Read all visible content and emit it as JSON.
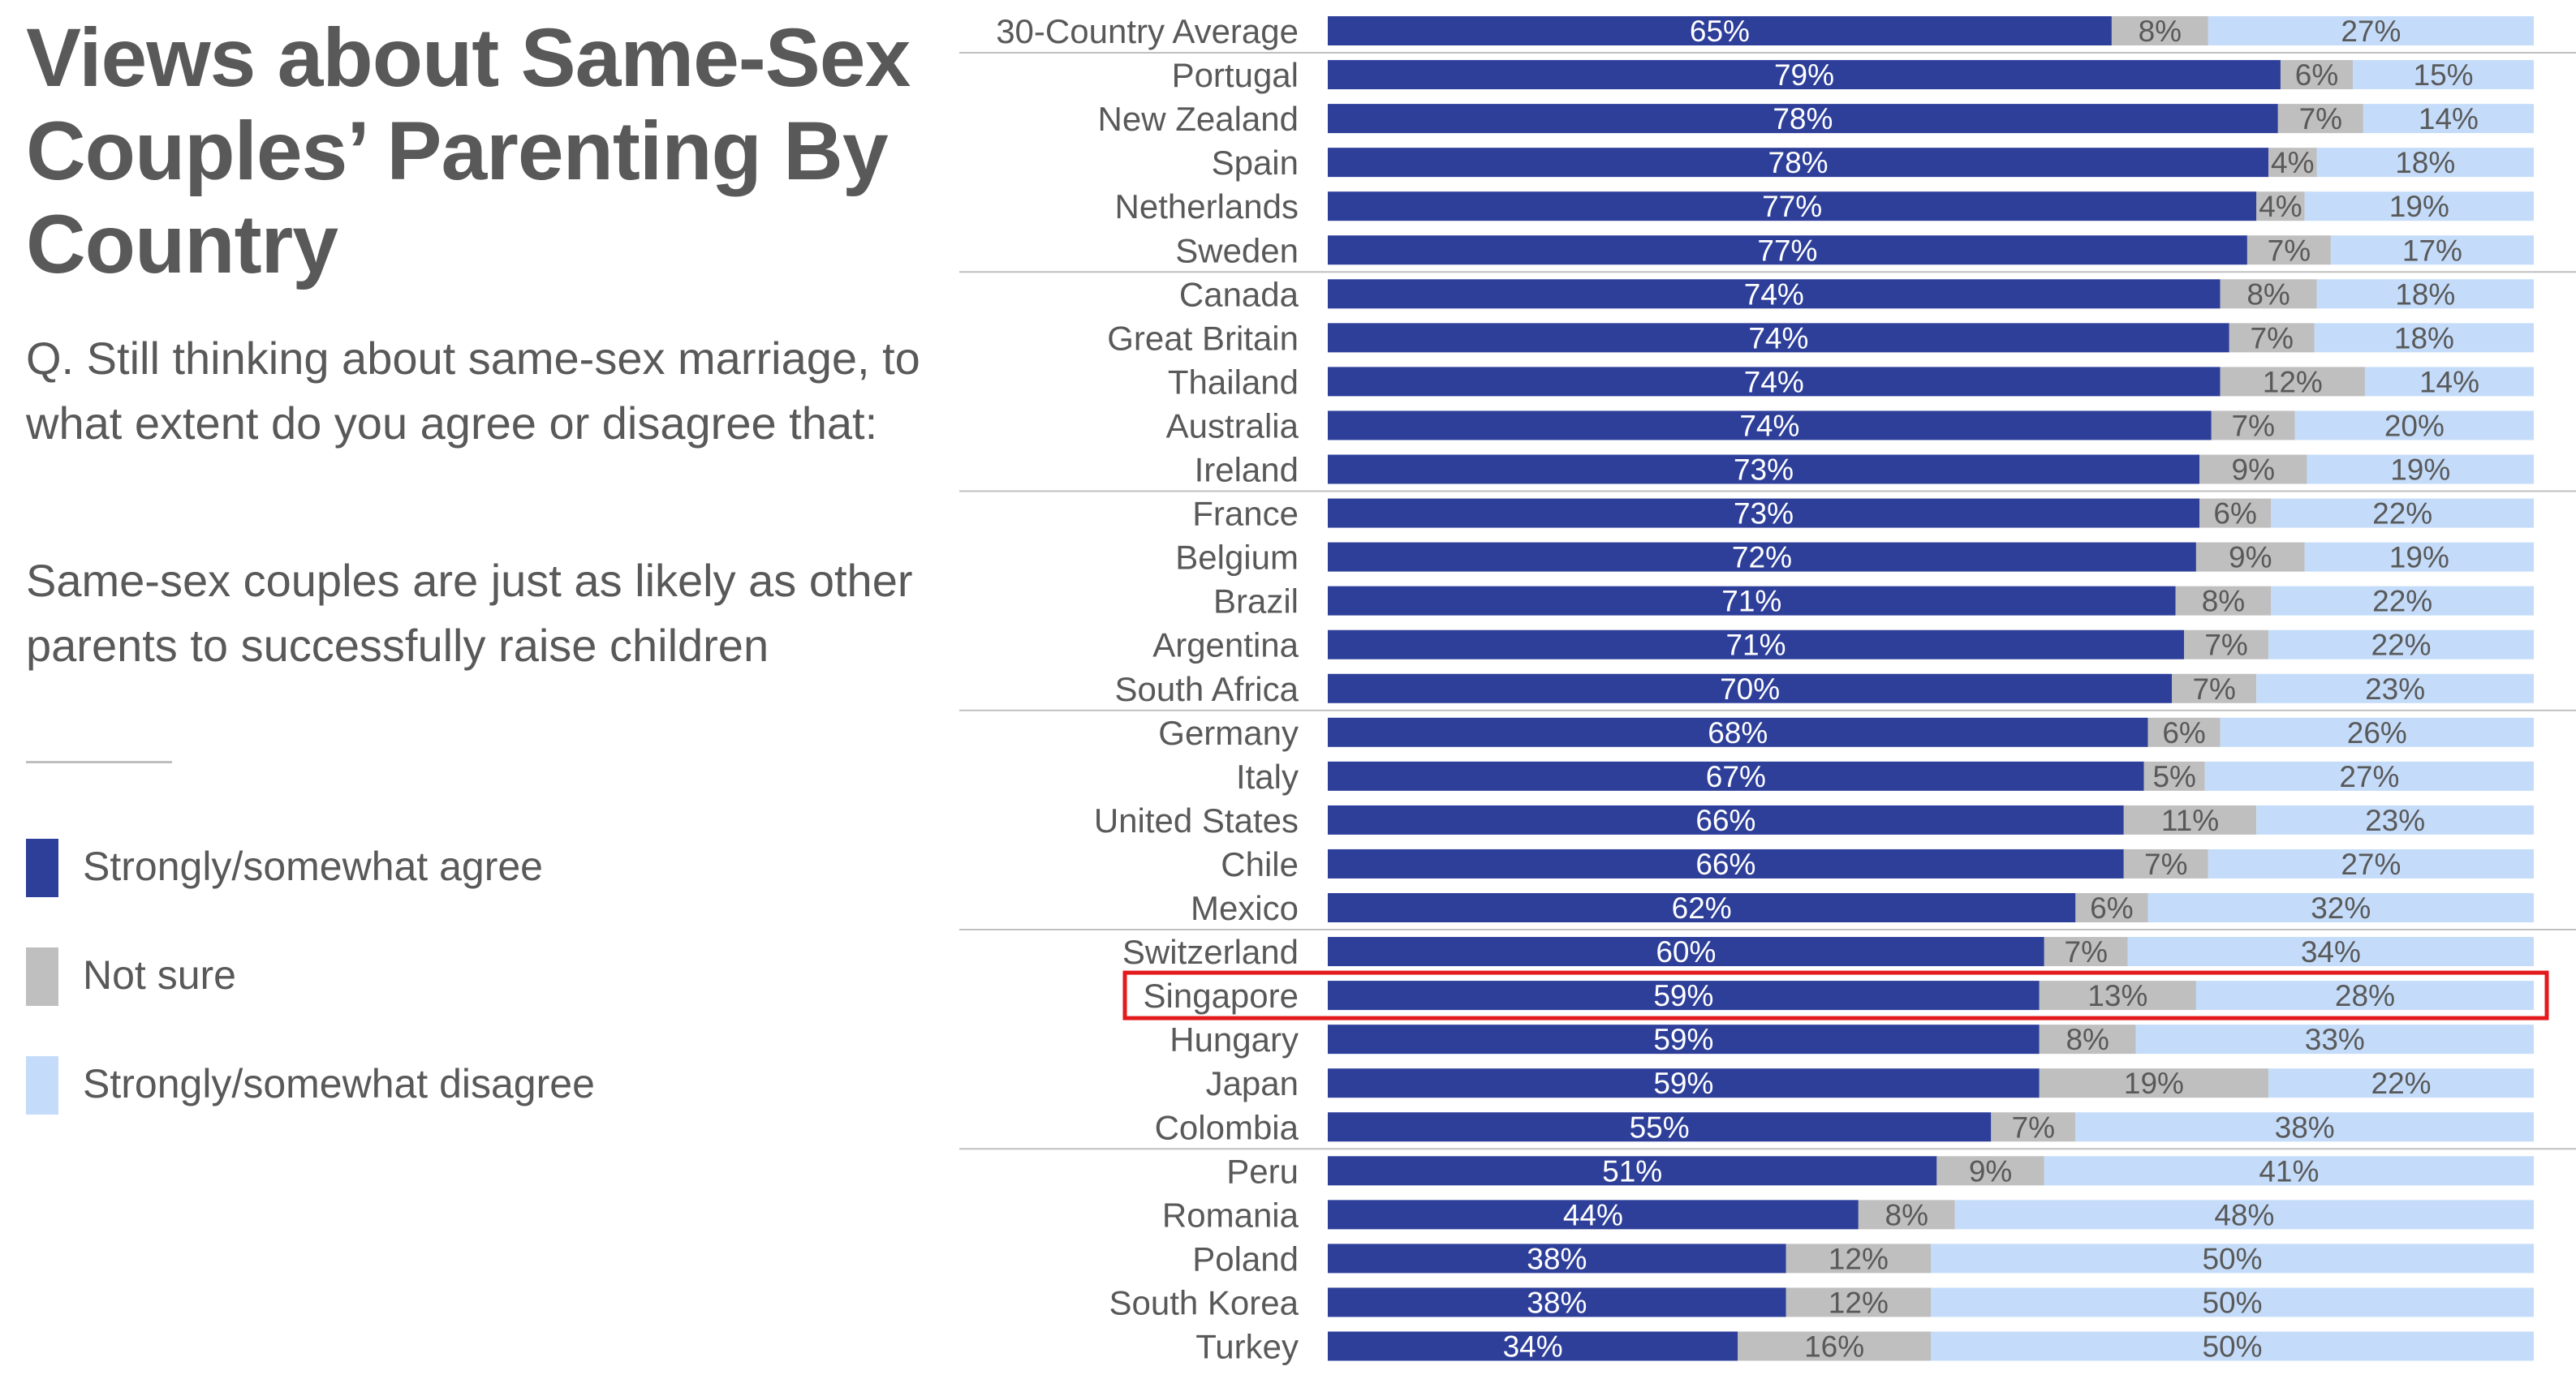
{
  "title": "Views about Same-Sex Couples’ Parenting By Country",
  "question": "Q. Still thinking about same-sex marriage, to what extent do you agree or disagree that:",
  "statement": "Same-sex couples are just as likely as other parents to successfully raise children",
  "colors": {
    "agree": "#2e3f9a",
    "not_sure": "#bfbfbf",
    "disagree": "#c4dcfa",
    "highlight": "#e31a1c",
    "text": "#595959",
    "separator": "#bfbfbf"
  },
  "legend": [
    {
      "label": "Strongly/somewhat agree",
      "color": "#2e3f9a"
    },
    {
      "label": "Not sure",
      "color": "#bfbfbf"
    },
    {
      "label": "Strongly/somewhat disagree",
      "color": "#c4dcfa"
    }
  ],
  "chart_data": {
    "type": "bar",
    "orientation": "horizontal",
    "stacked": true,
    "value_suffix": "%",
    "highlight": "Singapore",
    "group_breaks_after": [
      "30-Country Average",
      "Sweden",
      "Ireland",
      "South Africa",
      "Mexico",
      "Colombia"
    ],
    "categories": [
      "30-Country Average",
      "Portugal",
      "New Zealand",
      "Spain",
      "Netherlands",
      "Sweden",
      "Canada",
      "Great Britain",
      "Thailand",
      "Australia",
      "Ireland",
      "France",
      "Belgium",
      "Brazil",
      "Argentina",
      "South Africa",
      "Germany",
      "Italy",
      "United States",
      "Chile",
      "Mexico",
      "Switzerland",
      "Singapore",
      "Hungary",
      "Japan",
      "Colombia",
      "Peru",
      "Romania",
      "Poland",
      "South Korea",
      "Turkey"
    ],
    "series": [
      {
        "name": "Strongly/somewhat agree",
        "values": [
          65,
          79,
          78,
          78,
          77,
          77,
          74,
          74,
          74,
          74,
          73,
          73,
          72,
          71,
          71,
          70,
          68,
          67,
          66,
          66,
          62,
          60,
          59,
          59,
          59,
          55,
          51,
          44,
          38,
          38,
          34
        ]
      },
      {
        "name": "Not sure",
        "values": [
          8,
          6,
          7,
          4,
          4,
          7,
          8,
          7,
          12,
          7,
          9,
          6,
          9,
          8,
          7,
          7,
          6,
          5,
          11,
          7,
          6,
          7,
          13,
          8,
          19,
          7,
          9,
          8,
          12,
          12,
          16
        ]
      },
      {
        "name": "Strongly/somewhat disagree",
        "values": [
          27,
          15,
          14,
          18,
          19,
          17,
          18,
          18,
          14,
          20,
          19,
          22,
          19,
          22,
          22,
          23,
          26,
          27,
          23,
          27,
          32,
          34,
          28,
          33,
          22,
          38,
          41,
          48,
          50,
          50,
          50
        ]
      }
    ]
  }
}
